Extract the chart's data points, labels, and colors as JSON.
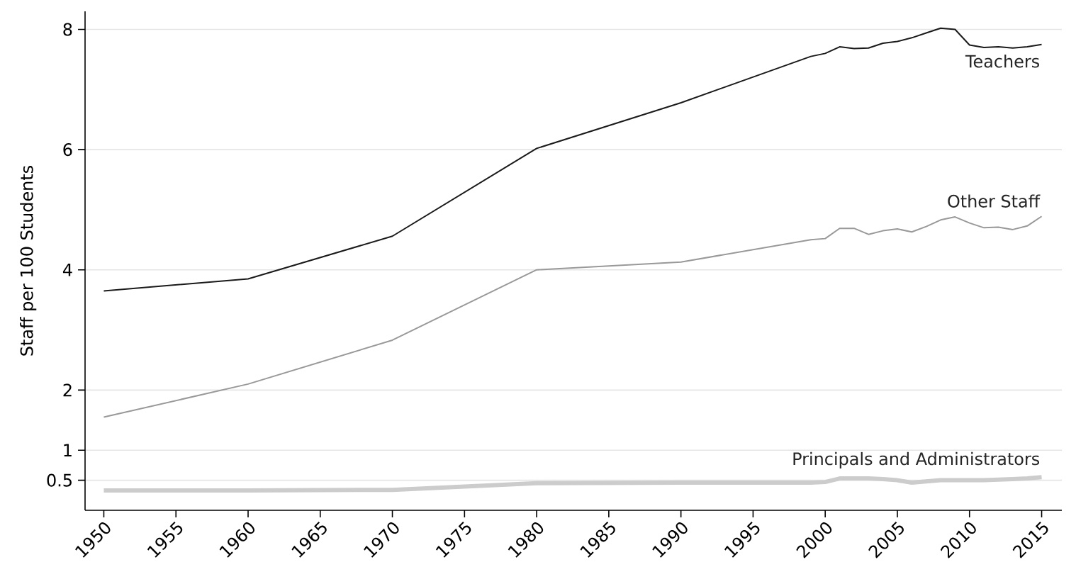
{
  "chart_data": {
    "type": "line",
    "ylabel": "Staff per 100 Students",
    "x": [
      1950,
      1960,
      1970,
      1980,
      1990,
      1999,
      2000,
      2001,
      2002,
      2003,
      2004,
      2005,
      2006,
      2007,
      2008,
      2009,
      2010,
      2011,
      2012,
      2013,
      2014,
      2015
    ],
    "series": [
      {
        "name": "Teachers",
        "color": "#1a1a1a",
        "values": [
          3.65,
          3.85,
          4.56,
          6.02,
          6.78,
          7.55,
          7.6,
          7.71,
          7.68,
          7.69,
          7.77,
          7.8,
          7.86,
          7.94,
          8.02,
          8.0,
          7.74,
          7.7,
          7.71,
          7.69,
          7.71,
          7.75
        ]
      },
      {
        "name": "Other Staff",
        "color": "#999999",
        "values": [
          1.55,
          2.1,
          2.83,
          4.0,
          4.13,
          4.5,
          4.52,
          4.69,
          4.69,
          4.59,
          4.65,
          4.68,
          4.63,
          4.72,
          4.83,
          4.88,
          4.78,
          4.7,
          4.71,
          4.67,
          4.73,
          4.89
        ]
      },
      {
        "name": "Principals and Administrators",
        "color": "#cccccc",
        "values": [
          0.33,
          0.33,
          0.34,
          0.45,
          0.46,
          0.46,
          0.47,
          0.53,
          0.53,
          0.53,
          0.52,
          0.5,
          0.46,
          0.48,
          0.5,
          0.5,
          0.5,
          0.5,
          0.51,
          0.52,
          0.53,
          0.55
        ]
      }
    ],
    "xlim": [
      1948.7,
      2016.4
    ],
    "ylim": [
      0,
      8.3
    ],
    "xticks": [
      1950,
      1955,
      1960,
      1965,
      1970,
      1975,
      1980,
      1985,
      1990,
      1995,
      2000,
      2005,
      2010,
      2015
    ],
    "yticks": [
      0.5,
      1,
      2,
      4,
      6,
      8
    ],
    "grid": "y",
    "legend": false,
    "marker": "none",
    "line_style": "solid"
  }
}
